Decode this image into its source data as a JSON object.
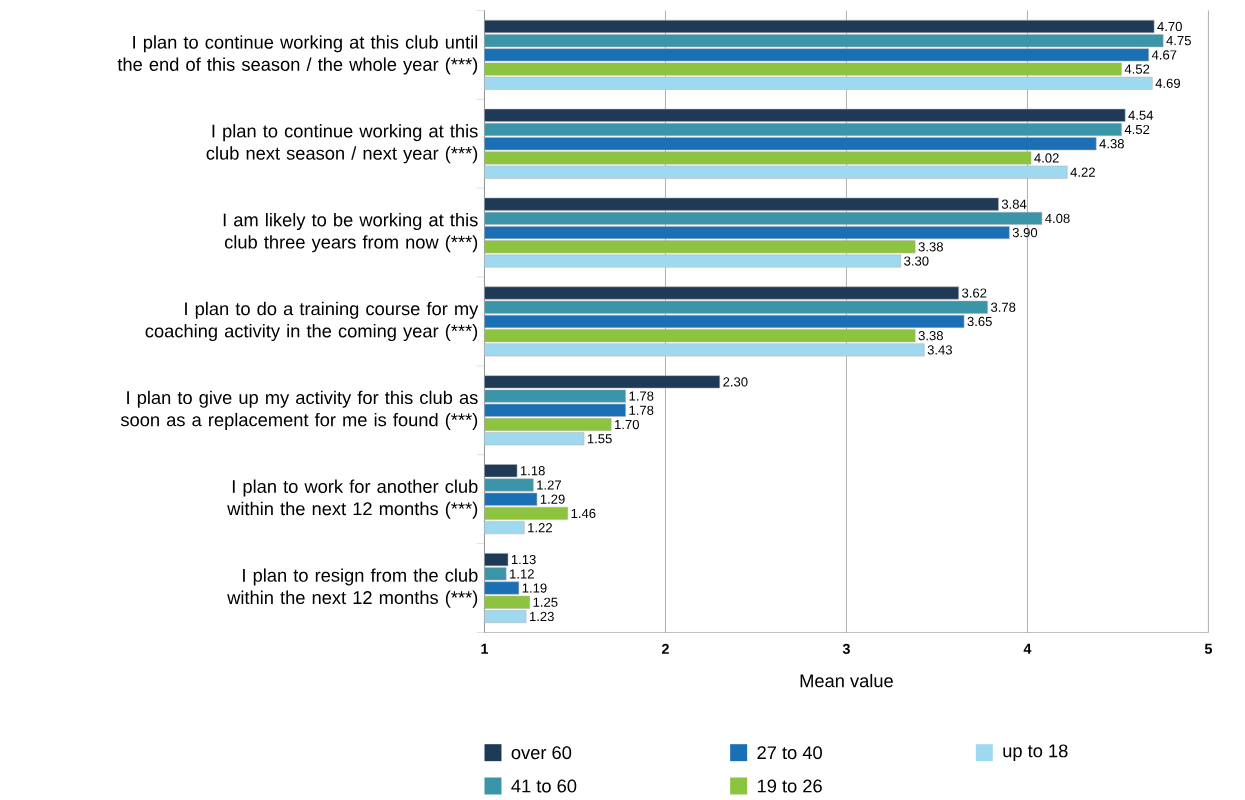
{
  "chart_data": {
    "type": "bar",
    "orientation": "horizontal",
    "xlabel": "Mean value",
    "categories": [
      "I plan to continue working at this club until the end of this season / the whole year (***)",
      "I plan to continue working at this club next season / next year (***)",
      "I am likely to be working at this club three years from now (***)",
      "I plan to do a training course for my coaching activity in the coming year (***)",
      "I plan to give up my activity for this club as soon as a replacement for me is found (***)",
      "I plan to work for another club within the next 12 months (***)",
      "I plan to resign from the club within the next 12 months (***)"
    ],
    "series": [
      {
        "name": "over 60",
        "color": "#1f3a56",
        "values": [
          4.7,
          4.54,
          3.84,
          3.62,
          2.3,
          1.18,
          1.13
        ],
        "value_labels": [
          "4.70",
          "4.54",
          "3.84",
          "3.62",
          "2.30",
          "1.18",
          "1.13"
        ]
      },
      {
        "name": "41 to 60",
        "color": "#3a95a8",
        "values": [
          4.75,
          4.52,
          4.08,
          3.78,
          1.78,
          1.27,
          1.12
        ],
        "value_labels": [
          "4.75",
          "4.52",
          "4.08",
          "3.78",
          "1.78",
          "1.27",
          "1.12"
        ]
      },
      {
        "name": "27 to 40",
        "color": "#1a6fb5",
        "values": [
          4.67,
          4.38,
          3.9,
          3.65,
          1.78,
          1.29,
          1.19
        ],
        "value_labels": [
          "4.67",
          "4.38",
          "3.90",
          "3.65",
          "1.78",
          "1.29",
          "1.19"
        ]
      },
      {
        "name": "19 to 26",
        "color": "#8cc43f",
        "values": [
          4.52,
          4.02,
          3.38,
          3.38,
          1.7,
          1.46,
          1.25
        ],
        "value_labels": [
          "4.52",
          "4.02",
          "3.38",
          "3.38",
          "1.70",
          "1.46",
          "1.25"
        ]
      },
      {
        "name": "up to 18",
        "color": "#9fd9ef",
        "values": [
          4.69,
          4.22,
          3.3,
          3.43,
          1.55,
          1.22,
          1.23
        ],
        "value_labels": [
          "4.69",
          "4.22",
          "3.30",
          "3.43",
          "1.55",
          "1.22",
          "1.23"
        ]
      }
    ],
    "xlim": [
      1,
      5
    ],
    "xticks": [
      1,
      2,
      3,
      4,
      5
    ],
    "grid": "x",
    "legend": "bottom"
  }
}
